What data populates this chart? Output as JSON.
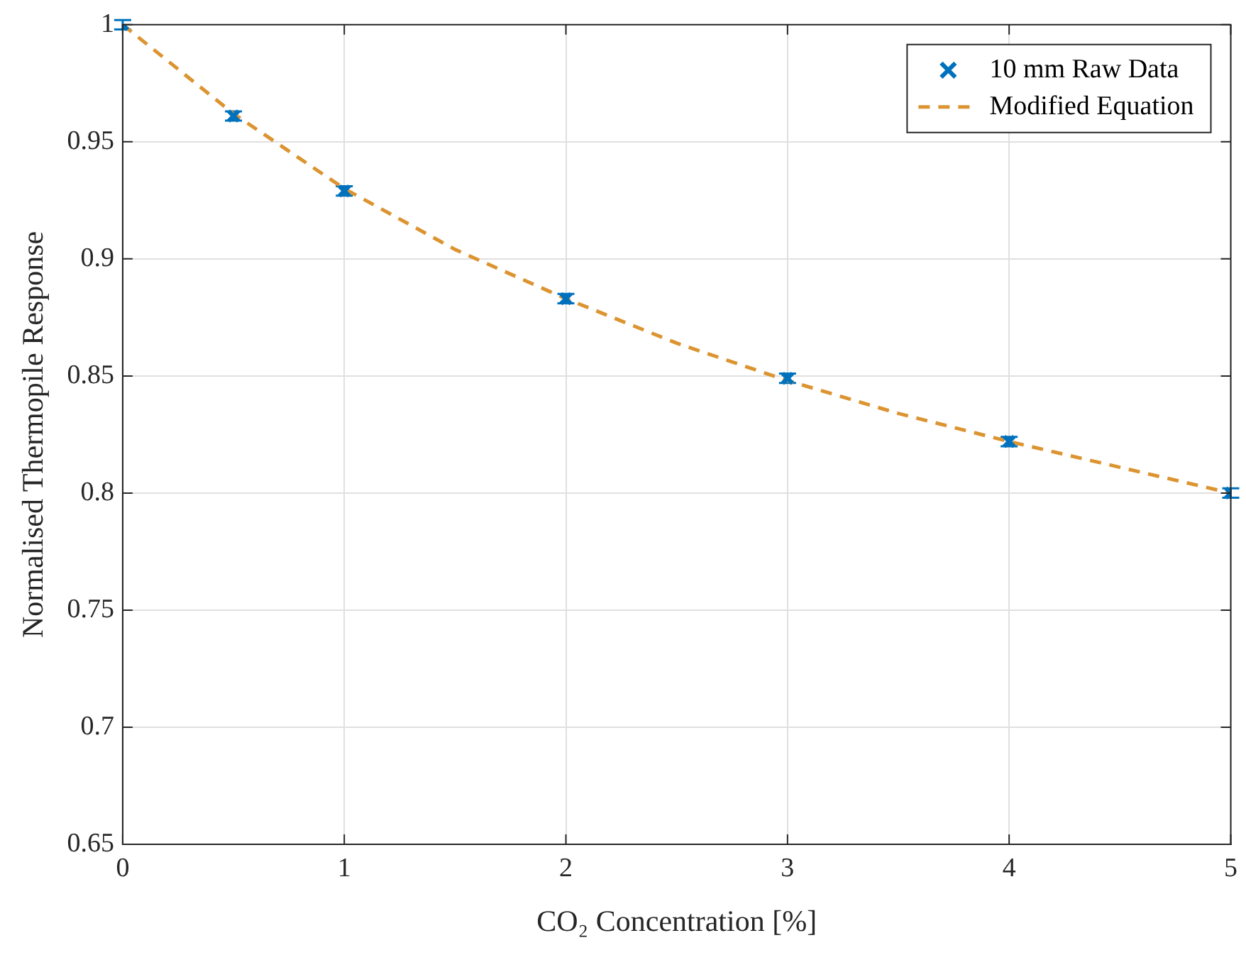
{
  "chart_data": {
    "type": "scatter",
    "xlabel": "CO₂ Concentration [%]",
    "ylabel": "Normalised Thermopile Response",
    "xlim": [
      0,
      5
    ],
    "xticks": [
      0,
      1,
      2,
      3,
      4,
      5
    ],
    "ylim": [
      0.65,
      1
    ],
    "yticks": [
      0.65,
      0.7,
      0.75,
      0.8,
      0.85,
      0.9,
      0.95,
      1
    ],
    "grid": true,
    "legend": "top right",
    "series": [
      {
        "name": "10 mm Raw Data",
        "color": "#0072bd",
        "marker": "cross",
        "x": [
          0,
          0.5,
          1,
          2,
          3,
          4,
          5
        ],
        "values": [
          1.0,
          0.961,
          0.929,
          0.883,
          0.849,
          0.822,
          0.8
        ],
        "errors": [
          0.002,
          0.002,
          0.002,
          0.002,
          0.002,
          0.002,
          0.002
        ]
      },
      {
        "name": "Modified Equation",
        "type": "line",
        "color": "#dc9431",
        "line_style": "dashed",
        "marker": "none",
        "x": [
          0,
          0.5,
          1,
          1.5,
          2,
          2.5,
          3,
          3.5,
          4,
          4.5,
          5
        ],
        "values": [
          1.0,
          0.962,
          0.93,
          0.904,
          0.883,
          0.864,
          0.848,
          0.834,
          0.822,
          0.811,
          0.8
        ]
      }
    ]
  }
}
